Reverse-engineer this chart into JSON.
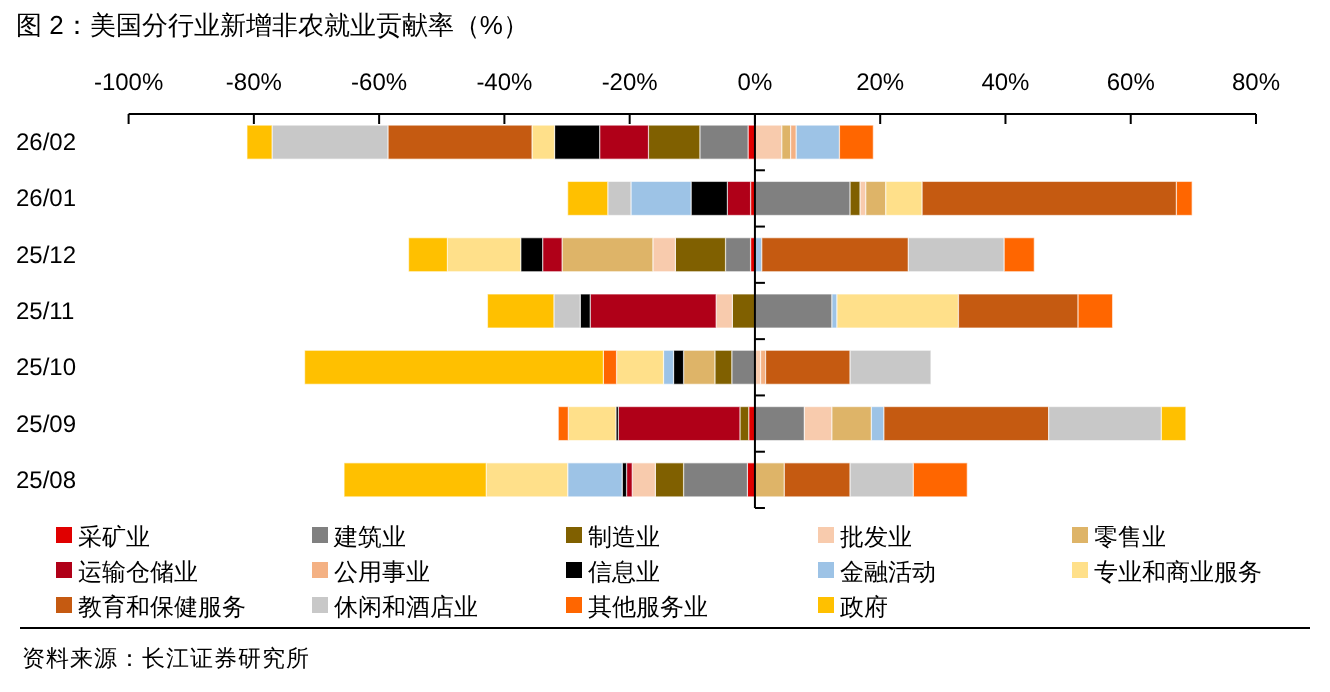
{
  "chart_data": {
    "type": "bar",
    "orientation": "horizontal",
    "stacked": true,
    "title": "图 2：美国分行业新增非农就业贡献率（%）",
    "categories": [
      "26/02",
      "26/01",
      "25/12",
      "25/11",
      "25/10",
      "25/09",
      "25/08"
    ],
    "xlim": [
      -100,
      80
    ],
    "xticks": [
      {
        "value": -100,
        "label": "-100%"
      },
      {
        "value": -80,
        "label": "-80%"
      },
      {
        "value": -60,
        "label": "-60%"
      },
      {
        "value": -40,
        "label": "-40%"
      },
      {
        "value": -20,
        "label": "-20%"
      },
      {
        "value": 0,
        "label": "0%"
      },
      {
        "value": 20,
        "label": "20%"
      },
      {
        "value": 40,
        "label": "40%"
      },
      {
        "value": 60,
        "label": "60%"
      },
      {
        "value": 80,
        "label": "80%"
      }
    ],
    "legend": "bottom",
    "series": [
      {
        "name": "采矿业",
        "color": "#e00000",
        "values": [
          -1.1,
          -0.7,
          -0.7,
          null,
          null,
          -1.0,
          -1.2
        ]
      },
      {
        "name": "建筑业",
        "color": "#808080",
        "values": [
          -7.7,
          15.2,
          -4.0,
          12.3,
          -3.7,
          7.9,
          -10.2
        ]
      },
      {
        "name": "制造业",
        "color": "#806000",
        "values": [
          -8.2,
          1.6,
          -8.0,
          -3.6,
          -2.7,
          -1.4,
          -4.5
        ]
      },
      {
        "name": "批发业",
        "color": "#f8cbad",
        "values": [
          4.3,
          0.9,
          -3.6,
          -2.6,
          0.9,
          4.4,
          -3.7
        ]
      },
      {
        "name": "零售业",
        "color": "#deb468",
        "values": [
          1.4,
          3.2,
          -14.5,
          null,
          -5.0,
          6.3,
          4.7
        ]
      },
      {
        "name": "运输仓储业",
        "color": "#b00018",
        "values": [
          -7.8,
          -3.7,
          -3.1,
          -20.1,
          null,
          -19.4,
          -0.9
        ]
      },
      {
        "name": "公用事业",
        "color": "#f4b183",
        "values": [
          0.9,
          null,
          null,
          null,
          0.8,
          null,
          null
        ]
      },
      {
        "name": "信息业",
        "color": "#000000",
        "values": [
          -7.2,
          -5.8,
          -3.5,
          -1.6,
          -1.6,
          -0.4,
          -0.7
        ]
      },
      {
        "name": "金融活动",
        "color": "#9dc3e6",
        "values": [
          6.9,
          -9.6,
          1.1,
          0.8,
          -1.6,
          2.0,
          -8.7
        ]
      },
      {
        "name": "专业和商业服务",
        "color": "#ffe08a",
        "values": [
          -3.6,
          5.8,
          -11.7,
          19.4,
          -7.5,
          -7.6,
          -13.0
        ]
      },
      {
        "name": "教育和保健服务",
        "color": "#c55a11",
        "values": [
          -23.0,
          40.6,
          23.4,
          19.1,
          13.5,
          26.3,
          10.5
        ]
      },
      {
        "name": "休闲和酒店业",
        "color": "#c8c8c8",
        "values": [
          -18.5,
          -3.7,
          15.3,
          -4.2,
          12.9,
          18.0,
          10.1
        ]
      },
      {
        "name": "其他服务业",
        "color": "#ff6600",
        "values": [
          5.4,
          2.5,
          4.8,
          5.5,
          -2.1,
          -1.6,
          8.6
        ]
      },
      {
        "name": "政府",
        "color": "#ffc000",
        "values": [
          -4.0,
          -6.4,
          -6.2,
          -10.6,
          -47.7,
          3.9,
          -22.7
        ]
      }
    ],
    "annotations": [
      "资料来源：长江证券研究所"
    ]
  }
}
